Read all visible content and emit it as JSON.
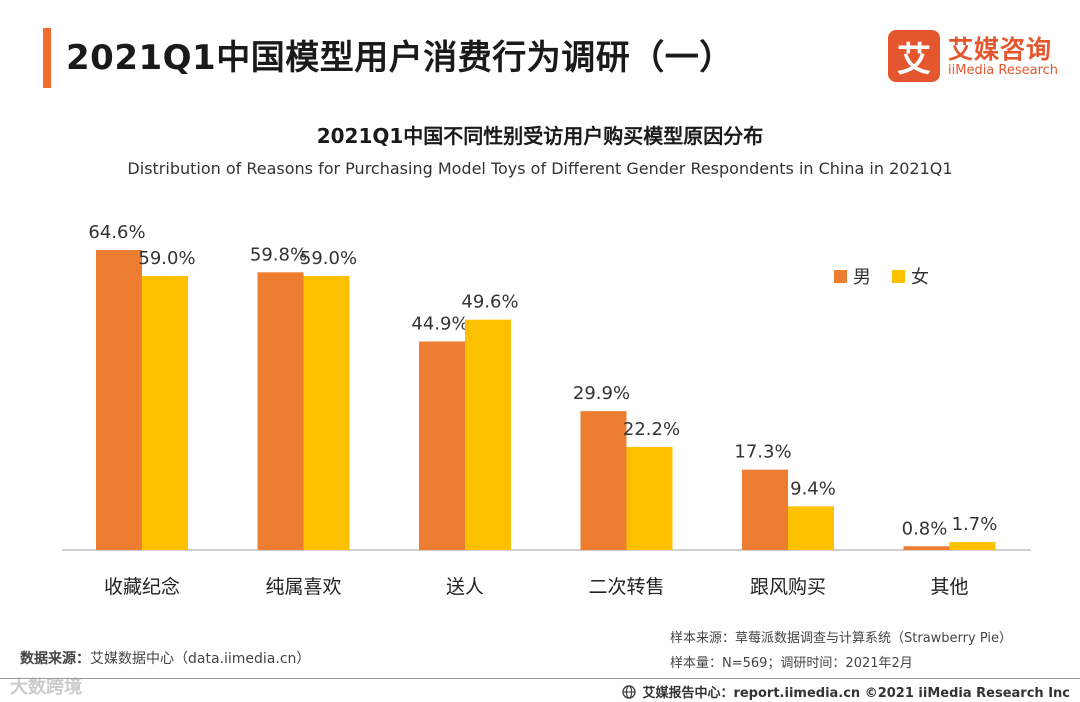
{
  "header": {
    "title": "2021Q1中国模型用户消费行为调研（一）",
    "logo_mark": "艾",
    "logo_cn": "艾媒咨询",
    "logo_en": "iiMedia Research"
  },
  "colors": {
    "accent": "#ee6f2d",
    "male": "#ed7d31",
    "female": "#ffc000",
    "axis": "#bfbfbf"
  },
  "chart_data": {
    "type": "bar",
    "title": "2021Q1中国不同性别受访用户购买模型原因分布",
    "subtitle": "Distribution of Reasons for Purchasing Model Toys of Different Gender Respondents in China in 2021Q1",
    "categories": [
      "收藏纪念",
      "纯属喜欢",
      "送人",
      "二次转售",
      "跟风购买",
      "其他"
    ],
    "series": [
      {
        "name": "男",
        "values": [
          64.6,
          59.8,
          44.9,
          29.9,
          17.3,
          0.8
        ],
        "labels": [
          "64.6%",
          "59.8%",
          "44.9%",
          "29.9%",
          "17.3%",
          "0.8%"
        ]
      },
      {
        "name": "女",
        "values": [
          59.0,
          59.0,
          49.6,
          22.2,
          9.4,
          1.7
        ],
        "labels": [
          "59.0%",
          "59.0%",
          "49.6%",
          "22.2%",
          "9.4%",
          "1.7%"
        ]
      }
    ],
    "legend_position": "top-right",
    "ylim": [
      0,
      70
    ],
    "grid": false,
    "xlabel": "",
    "ylabel": ""
  },
  "sources": {
    "left_label": "数据来源：",
    "left_value": "艾媒数据中心（data.iimedia.cn）",
    "sample_source": "样本来源：草莓派数据调查与计算系统（Strawberry Pie）",
    "sample_size": "样本量：N=569；调研时间：2021年2月"
  },
  "footer": {
    "text": "艾媒报告中心：report.iimedia.cn  ©2021  iiMedia Research  Inc",
    "watermark": "大数跨境"
  }
}
